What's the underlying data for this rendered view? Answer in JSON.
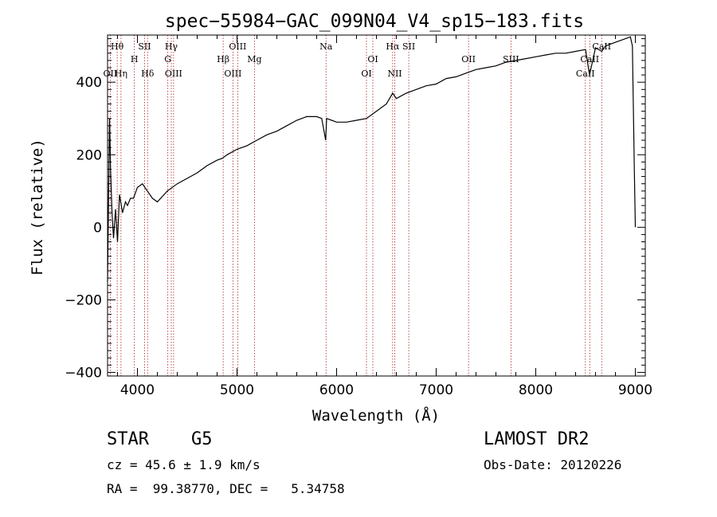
{
  "chart_data": {
    "type": "line",
    "title": "spec−55984−GAC_099N04_V4_sp15−183.fits",
    "xlabel": "Wavelength (Å)",
    "ylabel": "Flux (relative)",
    "xlim": [
      3700,
      9100
    ],
    "ylim": [
      -410,
      530
    ],
    "x_ticks": [
      4000,
      5000,
      6000,
      7000,
      8000,
      9000
    ],
    "y_ticks": [
      -400,
      -200,
      0,
      200,
      400
    ],
    "x_tick_labels": [
      "4000",
      "5000",
      "6000",
      "7000",
      "8000",
      "9000"
    ],
    "y_tick_labels": [
      "−400",
      "−200",
      "0",
      "200",
      "400"
    ],
    "grid": false,
    "series": [
      {
        "x": [
          3700,
          3720,
          3730,
          3745,
          3760,
          3780,
          3800,
          3820,
          3850,
          3880,
          3900,
          3930,
          3960,
          4000,
          4050,
          4100,
          4150,
          4200,
          4250,
          4300,
          4350,
          4400,
          4500,
          4600,
          4700,
          4800,
          4850,
          4900,
          5000,
          5100,
          5200,
          5300,
          5400,
          5500,
          5600,
          5700,
          5800,
          5850,
          5890,
          5900,
          5950,
          6000,
          6100,
          6200,
          6300,
          6400,
          6500,
          6563,
          6600,
          6700,
          6800,
          6900,
          7000,
          7100,
          7200,
          7300,
          7400,
          7500,
          7600,
          7700,
          7800,
          7900,
          8000,
          8100,
          8200,
          8300,
          8400,
          8500,
          8540,
          8600,
          8662,
          8700,
          8800,
          8850,
          8900,
          8950,
          8970,
          8990,
          9000
        ],
        "y": [
          -150,
          300,
          160,
          40,
          -30,
          50,
          -40,
          90,
          40,
          70,
          60,
          80,
          80,
          110,
          120,
          100,
          80,
          70,
          85,
          100,
          110,
          120,
          135,
          150,
          170,
          185,
          190,
          200,
          215,
          225,
          240,
          255,
          265,
          280,
          295,
          305,
          305,
          300,
          240,
          300,
          295,
          290,
          290,
          295,
          300,
          320,
          340,
          370,
          355,
          370,
          380,
          390,
          395,
          410,
          415,
          425,
          435,
          440,
          445,
          455,
          460,
          465,
          470,
          475,
          480,
          480,
          485,
          490,
          420,
          495,
          485,
          500,
          510,
          515,
          520,
          525,
          500,
          150,
          0
        ]
      }
    ],
    "lines": [
      {
        "label": "Hθ",
        "x": 3797,
        "row": 1
      },
      {
        "label": "OII",
        "x": 3727,
        "row": 3
      },
      {
        "label": "Hη",
        "x": 3835,
        "row": 3
      },
      {
        "label": "H",
        "x": 3969,
        "row": 2
      },
      {
        "label": "SII",
        "x": 4072,
        "row": 1
      },
      {
        "label": "Hδ",
        "x": 4102,
        "row": 3
      },
      {
        "label": "Hγ",
        "x": 4340,
        "row": 1
      },
      {
        "label": "G",
        "x": 4305,
        "row": 2
      },
      {
        "label": "OIII",
        "x": 4363,
        "row": 3
      },
      {
        "label": "Hβ",
        "x": 4861,
        "row": 2
      },
      {
        "label": "OIII",
        "x": 5007,
        "row": 1
      },
      {
        "label": "OIII",
        "x": 4959,
        "row": 3
      },
      {
        "label": "Mg",
        "x": 5175,
        "row": 2
      },
      {
        "label": "Na",
        "x": 5894,
        "row": 1
      },
      {
        "label": "OI",
        "x": 6364,
        "row": 2
      },
      {
        "label": "OI",
        "x": 6300,
        "row": 3
      },
      {
        "label": "Hα",
        "x": 6563,
        "row": 1
      },
      {
        "label": "SII",
        "x": 6725,
        "row": 1
      },
      {
        "label": "NII",
        "x": 6584,
        "row": 3
      },
      {
        "label": "OII",
        "x": 7325,
        "row": 2
      },
      {
        "label": "SIII",
        "x": 7751,
        "row": 2
      },
      {
        "label": "CaII",
        "x": 8662,
        "row": 1
      },
      {
        "label": "CaII",
        "x": 8542,
        "row": 2
      },
      {
        "label": "CaII",
        "x": 8498,
        "row": 3
      }
    ]
  },
  "info": {
    "object": "STAR    G5",
    "survey": "LAMOST DR2",
    "cz": "cz = 45.6 ± 1.9 km/s",
    "obs_date": "Obs-Date: 20120226",
    "coords": "RA =  99.38770, DEC =   5.34758"
  }
}
